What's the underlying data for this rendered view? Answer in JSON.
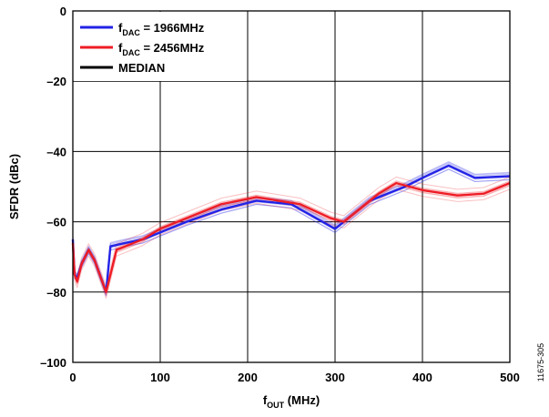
{
  "chart_data": {
    "type": "line",
    "xlabel": {
      "main": "f",
      "sub": "OUT",
      "rest": " (MHz)"
    },
    "ylabel": "SFDR (dBc)",
    "xlim": [
      0,
      500
    ],
    "ylim": [
      -100,
      0
    ],
    "xticks": [
      0,
      100,
      200,
      300,
      400,
      500
    ],
    "yticks": [
      0,
      -20,
      -40,
      -60,
      -80,
      -100
    ],
    "ytick_labels": [
      "0",
      "–20",
      "–40",
      "–60",
      "–80",
      "–100"
    ],
    "xtick_labels": [
      "0",
      "100",
      "200",
      "300",
      "400",
      "500"
    ],
    "grid": true,
    "legend_position": "top-left",
    "figure_number": "11675-305",
    "legend": [
      {
        "main": "f",
        "sub": "DAC",
        "rest": " = 1966MHz",
        "color": "#2323e6"
      },
      {
        "main": "f",
        "sub": "DAC",
        "rest": " = 2456MHz",
        "color": "#ee1c25"
      },
      {
        "main": "MEDIAN",
        "sub": "",
        "rest": "",
        "color": "#000000"
      }
    ],
    "series": [
      {
        "name": "fDAC = 1966MHz",
        "color": "#2323e6",
        "x": [
          0,
          2,
          5,
          10,
          18,
          25,
          38,
          43,
          60,
          80,
          100,
          130,
          170,
          210,
          250,
          300,
          340,
          380,
          400,
          430,
          460,
          500
        ],
        "y": [
          -65,
          -75,
          -76,
          -72,
          -68,
          -71,
          -80,
          -67,
          -66,
          -65,
          -63,
          -60,
          -56.5,
          -54,
          -55,
          -62,
          -54,
          -50,
          -47.5,
          -44,
          -47.5,
          -47
        ]
      },
      {
        "name": "fDAC = 2456MHz",
        "color": "#ee1c25",
        "x": [
          0,
          2,
          5,
          10,
          18,
          25,
          38,
          50,
          80,
          100,
          130,
          170,
          210,
          260,
          295,
          310,
          330,
          350,
          370,
          400,
          440,
          470,
          500
        ],
        "y": [
          -66,
          -75,
          -77,
          -72,
          -68,
          -71,
          -80,
          -68,
          -65,
          -62,
          -59,
          -55,
          -53,
          -55,
          -59,
          -60,
          -56,
          -52,
          -49,
          -51,
          -52.5,
          -52,
          -49
        ]
      }
    ]
  }
}
